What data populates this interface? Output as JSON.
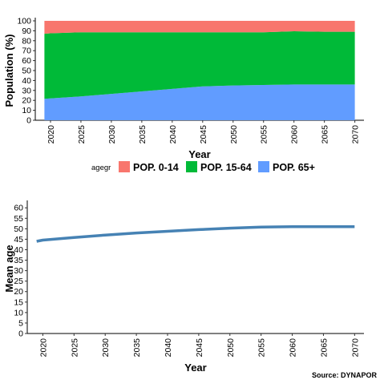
{
  "source": "Source: DYNAPOR",
  "chart_data": [
    {
      "type": "area",
      "stacked": true,
      "xlabel": "Year",
      "ylabel": "Population (%)",
      "x": [
        2019,
        2020,
        2025,
        2030,
        2035,
        2040,
        2045,
        2050,
        2055,
        2060,
        2065,
        2070
      ],
      "xticks": [
        2020,
        2025,
        2030,
        2035,
        2040,
        2045,
        2050,
        2055,
        2060,
        2065,
        2070
      ],
      "yticks": [
        0,
        10,
        20,
        30,
        40,
        50,
        60,
        70,
        80,
        90,
        100
      ],
      "ylim": [
        0,
        100
      ],
      "xlim": [
        2017.5,
        2071.5
      ],
      "legend": {
        "title": "agegr",
        "position": "center"
      },
      "series": [
        {
          "name": "POP. 65+",
          "color": "#619CFF",
          "values": [
            21.5,
            22,
            24,
            26.5,
            29,
            31.5,
            34,
            35,
            35.5,
            36,
            36,
            36
          ]
        },
        {
          "name": "POP. 15-64",
          "color": "#00BA38",
          "values": [
            65.5,
            65.5,
            64.5,
            62,
            59.5,
            57,
            54.5,
            53.5,
            53,
            53.5,
            53,
            53
          ]
        },
        {
          "name": "POP. 0-14",
          "color": "#F8766D",
          "values": [
            13,
            12.5,
            11.5,
            11.5,
            11.5,
            11.5,
            11.5,
            11.5,
            11.5,
            10.5,
            11,
            11
          ]
        }
      ]
    },
    {
      "type": "line",
      "xlabel": "Year",
      "ylabel": "Mean age",
      "x": [
        2019,
        2020,
        2025,
        2030,
        2035,
        2040,
        2045,
        2050,
        2055,
        2060,
        2065,
        2070
      ],
      "xticks": [
        2020,
        2025,
        2030,
        2035,
        2040,
        2045,
        2050,
        2055,
        2060,
        2065,
        2070
      ],
      "yticks": [
        0,
        5,
        10,
        15,
        20,
        25,
        30,
        35,
        40,
        45,
        50,
        55,
        60
      ],
      "ylim": [
        0,
        62
      ],
      "xlim": [
        2017.5,
        2071.5
      ],
      "series": [
        {
          "color": "#4682B4",
          "values": [
            44.0,
            44.6,
            45.8,
            47.0,
            48.0,
            48.8,
            49.6,
            50.3,
            50.8,
            51.0,
            51.0,
            51.0
          ]
        }
      ]
    }
  ]
}
